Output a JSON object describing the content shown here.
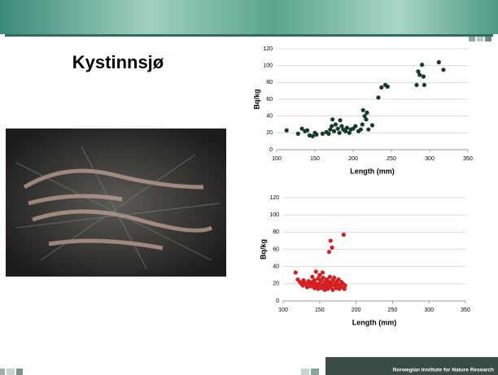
{
  "slide": {
    "title": "Kystinnsjø",
    "footer": "Norwegian Institute for Nature Research"
  },
  "chart_data": [
    {
      "type": "scatter",
      "x_label": "Length (mm)",
      "y_label": "Bq/kg",
      "color": "#173b2b",
      "x": [
        113,
        128,
        133,
        137,
        140,
        143,
        147,
        150,
        152,
        160,
        165,
        168,
        170,
        172,
        173,
        175,
        177,
        180,
        182,
        183,
        185,
        187,
        190,
        192,
        195,
        197,
        200,
        203,
        207,
        210,
        212,
        213,
        215,
        217,
        218,
        220,
        225,
        233,
        237,
        242,
        245,
        283,
        285,
        287,
        290,
        292,
        293,
        312,
        318
      ],
      "values": [
        23,
        19,
        25,
        22,
        23,
        17,
        16,
        20,
        18,
        19,
        21,
        19,
        24,
        28,
        36,
        22,
        30,
        25,
        20,
        35,
        28,
        24,
        22,
        26,
        20,
        24,
        25,
        28,
        22,
        24,
        30,
        47,
        40,
        36,
        44,
        24,
        29,
        62,
        74,
        77,
        75,
        77,
        93,
        89,
        101,
        87,
        77,
        104,
        95
      ],
      "xlim": [
        100,
        350
      ],
      "ylim": [
        0,
        120
      ],
      "xticks": [
        100,
        150,
        200,
        250,
        300,
        350
      ],
      "yticks": [
        0,
        20,
        40,
        60,
        80,
        100,
        120
      ],
      "grid": true
    },
    {
      "type": "scatter",
      "x_label": "Length (mm)",
      "y_label": "Bq/kg",
      "color": "#d42020",
      "x": [
        117,
        120,
        123,
        125,
        127,
        128,
        130,
        132,
        133,
        135,
        137,
        138,
        140,
        140,
        142,
        143,
        143,
        145,
        145,
        147,
        148,
        148,
        150,
        150,
        151,
        152,
        153,
        154,
        155,
        155,
        157,
        157,
        158,
        160,
        160,
        161,
        162,
        163,
        163,
        164,
        165,
        165,
        166,
        167,
        168,
        168,
        170,
        170,
        172,
        173,
        174,
        175,
        176,
        177,
        178,
        180,
        181,
        182,
        183,
        184,
        185
      ],
      "values": [
        33,
        25,
        22,
        20,
        18,
        24,
        21,
        19,
        16,
        23,
        20,
        17,
        22,
        28,
        18,
        15,
        24,
        20,
        34,
        17,
        26,
        14,
        21,
        30,
        18,
        24,
        15,
        33,
        19,
        27,
        22,
        13,
        17,
        20,
        25,
        14,
        18,
        22,
        57,
        28,
        16,
        70,
        20,
        62,
        24,
        13,
        18,
        27,
        21,
        15,
        23,
        19,
        25,
        14,
        18,
        22,
        16,
        20,
        77,
        14,
        18
      ],
      "xlim": [
        100,
        350
      ],
      "ylim": [
        0,
        120
      ],
      "xticks": [
        100,
        150,
        200,
        250,
        300,
        350
      ],
      "yticks": [
        0,
        20,
        40,
        60,
        80,
        100,
        120
      ],
      "grid": true
    }
  ]
}
